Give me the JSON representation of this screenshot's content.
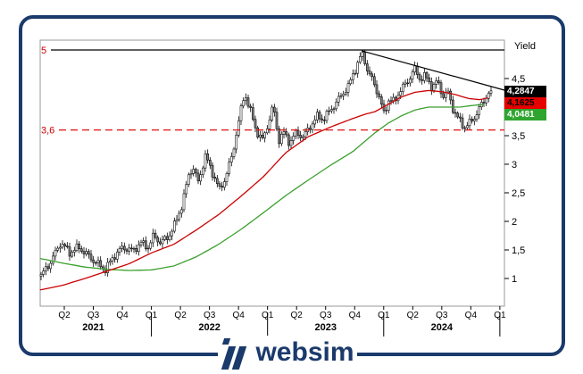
{
  "logo": {
    "text": "websim",
    "color": "#1a3a6c"
  },
  "frame": {
    "border_color": "#1a3a6c"
  },
  "chart_data": {
    "type": "candlestick",
    "title": "Yield",
    "ylim": [
      0.85,
      5.15
    ],
    "x_range": [
      "2021-Q2",
      "2025-Q1"
    ],
    "grid": false,
    "y_axis": {
      "side": "right",
      "ticks": [
        {
          "v": 4.5,
          "label": "4,5"
        },
        {
          "v": 3.5,
          "label": "3,5"
        },
        {
          "v": 3.0,
          "label": "3"
        },
        {
          "v": 2.5,
          "label": "2,5"
        },
        {
          "v": 2.0,
          "label": "2"
        },
        {
          "v": 1.5,
          "label": "1,5"
        },
        {
          "v": 1.0,
          "label": "1"
        }
      ]
    },
    "x_axis": {
      "quarters": [
        "Q2",
        "Q3",
        "Q4",
        "Q1",
        "Q2",
        "Q3",
        "Q4",
        "Q1",
        "Q2",
        "Q3",
        "Q4",
        "Q1",
        "Q2",
        "Q3",
        "Q4",
        "Q1"
      ],
      "years": [
        "2021",
        "2022",
        "2023",
        "2024"
      ]
    },
    "hlines": [
      {
        "value": 5.0,
        "label": "5",
        "style": "solid",
        "color": "#000000",
        "label_color": "#cc0000"
      },
      {
        "value": 3.6,
        "label": "3,6",
        "style": "dashed",
        "color": "#e01010",
        "label_color": "#cc0000"
      }
    ],
    "trendline": {
      "from": [
        2023.81,
        4.985
      ],
      "to": [
        2025.04,
        4.297
      ],
      "color": "#000000"
    },
    "badges": [
      {
        "label": "4,2847",
        "value": 4.2847,
        "meaning": "last-price",
        "bg": "#000000",
        "fg": "#ffffff"
      },
      {
        "label": "4,1625",
        "value": 4.1625,
        "meaning": "fast-moving-avg",
        "bg": "#e60000",
        "fg": "#000000"
      },
      {
        "label": "4,0481",
        "value": 4.0481,
        "meaning": "slow-moving-avg",
        "bg": "#2fa52f",
        "fg": "#ffffff"
      }
    ],
    "series": {
      "price": {
        "name": "Yield",
        "color": "#000000",
        "down_fill": "#808080",
        "up_fill": "#ffffff",
        "keypoints": [
          [
            2021.042,
            1.02
          ],
          [
            2021.135,
            1.3
          ],
          [
            2021.219,
            1.63
          ],
          [
            2021.296,
            1.45
          ],
          [
            2021.373,
            1.55
          ],
          [
            2021.465,
            1.38
          ],
          [
            2021.557,
            1.22
          ],
          [
            2021.604,
            1.16
          ],
          [
            2021.68,
            1.4
          ],
          [
            2021.757,
            1.55
          ],
          [
            2021.834,
            1.48
          ],
          [
            2021.911,
            1.62
          ],
          [
            2021.973,
            1.55
          ],
          [
            2022.019,
            1.75
          ],
          [
            2022.08,
            1.63
          ],
          [
            2022.142,
            1.72
          ],
          [
            2022.203,
            1.95
          ],
          [
            2022.265,
            2.3
          ],
          [
            2022.326,
            2.85
          ],
          [
            2022.357,
            2.95
          ],
          [
            2022.403,
            2.68
          ],
          [
            2022.464,
            3.15
          ],
          [
            2022.526,
            2.85
          ],
          [
            2022.587,
            2.55
          ],
          [
            2022.634,
            2.75
          ],
          [
            2022.695,
            3.15
          ],
          [
            2022.756,
            3.8
          ],
          [
            2022.803,
            4.25
          ],
          [
            2022.849,
            3.95
          ],
          [
            2022.91,
            3.55
          ],
          [
            2022.956,
            3.42
          ],
          [
            2023.003,
            3.7
          ],
          [
            2023.049,
            4.02
          ],
          [
            2023.095,
            3.42
          ],
          [
            2023.141,
            3.55
          ],
          [
            2023.187,
            3.38
          ],
          [
            2023.249,
            3.55
          ],
          [
            2023.31,
            3.48
          ],
          [
            2023.372,
            3.68
          ],
          [
            2023.433,
            3.85
          ],
          [
            2023.479,
            3.78
          ],
          [
            2023.541,
            3.95
          ],
          [
            2023.602,
            4.1
          ],
          [
            2023.648,
            4.25
          ],
          [
            2023.694,
            4.35
          ],
          [
            2023.74,
            4.6
          ],
          [
            2023.786,
            4.8
          ],
          [
            2023.817,
            4.98
          ],
          [
            2023.863,
            4.62
          ],
          [
            2023.909,
            4.45
          ],
          [
            2023.955,
            4.22
          ],
          [
            2024.001,
            3.88
          ],
          [
            2024.047,
            4.15
          ],
          [
            2024.093,
            4.08
          ],
          [
            2024.139,
            4.3
          ],
          [
            2024.201,
            4.42
          ],
          [
            2024.262,
            4.68
          ],
          [
            2024.308,
            4.5
          ],
          [
            2024.354,
            4.55
          ],
          [
            2024.416,
            4.35
          ],
          [
            2024.462,
            4.45
          ],
          [
            2024.508,
            4.2
          ],
          [
            2024.554,
            4.25
          ],
          [
            2024.6,
            3.95
          ],
          [
            2024.646,
            3.78
          ],
          [
            2024.693,
            3.65
          ],
          [
            2024.739,
            3.72
          ],
          [
            2024.769,
            3.78
          ],
          [
            2024.815,
            3.95
          ],
          [
            2024.862,
            4.1
          ],
          [
            2024.892,
            4.22
          ],
          [
            2024.923,
            4.2847
          ]
        ]
      },
      "ma_fast": {
        "name": "moving average (fast)",
        "color": "#cc0000",
        "last": 4.1625,
        "keypoints": [
          [
            2021.042,
            0.8
          ],
          [
            2021.235,
            0.88
          ],
          [
            2021.427,
            1.0
          ],
          [
            2021.619,
            1.13
          ],
          [
            2021.811,
            1.26
          ],
          [
            2022.003,
            1.45
          ],
          [
            2022.195,
            1.6
          ],
          [
            2022.388,
            1.85
          ],
          [
            2022.58,
            2.12
          ],
          [
            2022.772,
            2.44
          ],
          [
            2022.964,
            2.78
          ],
          [
            2023.156,
            3.2
          ],
          [
            2023.349,
            3.48
          ],
          [
            2023.541,
            3.65
          ],
          [
            2023.733,
            3.8
          ],
          [
            2023.848,
            3.88
          ],
          [
            2023.925,
            3.92
          ],
          [
            2024.04,
            4.05
          ],
          [
            2024.155,
            4.18
          ],
          [
            2024.27,
            4.26
          ],
          [
            2024.385,
            4.29
          ],
          [
            2024.501,
            4.27
          ],
          [
            2024.616,
            4.22
          ],
          [
            2024.731,
            4.15
          ],
          [
            2024.831,
            4.13
          ],
          [
            2024.892,
            4.1625
          ]
        ]
      },
      "ma_slow": {
        "name": "moving average (slow)",
        "color": "#3aa02c",
        "last": 4.0481,
        "keypoints": [
          [
            2021.042,
            1.35
          ],
          [
            2021.235,
            1.27
          ],
          [
            2021.427,
            1.2
          ],
          [
            2021.619,
            1.16
          ],
          [
            2021.811,
            1.14
          ],
          [
            2022.003,
            1.15
          ],
          [
            2022.195,
            1.22
          ],
          [
            2022.388,
            1.38
          ],
          [
            2022.58,
            1.6
          ],
          [
            2022.772,
            1.86
          ],
          [
            2022.964,
            2.15
          ],
          [
            2023.156,
            2.45
          ],
          [
            2023.349,
            2.72
          ],
          [
            2023.541,
            2.98
          ],
          [
            2023.733,
            3.22
          ],
          [
            2023.925,
            3.55
          ],
          [
            2024.04,
            3.72
          ],
          [
            2024.155,
            3.85
          ],
          [
            2024.27,
            3.95
          ],
          [
            2024.385,
            4.0
          ],
          [
            2024.539,
            4.0
          ],
          [
            2024.654,
            4.0
          ],
          [
            2024.769,
            4.03
          ],
          [
            2024.862,
            4.0481
          ]
        ]
      }
    }
  }
}
